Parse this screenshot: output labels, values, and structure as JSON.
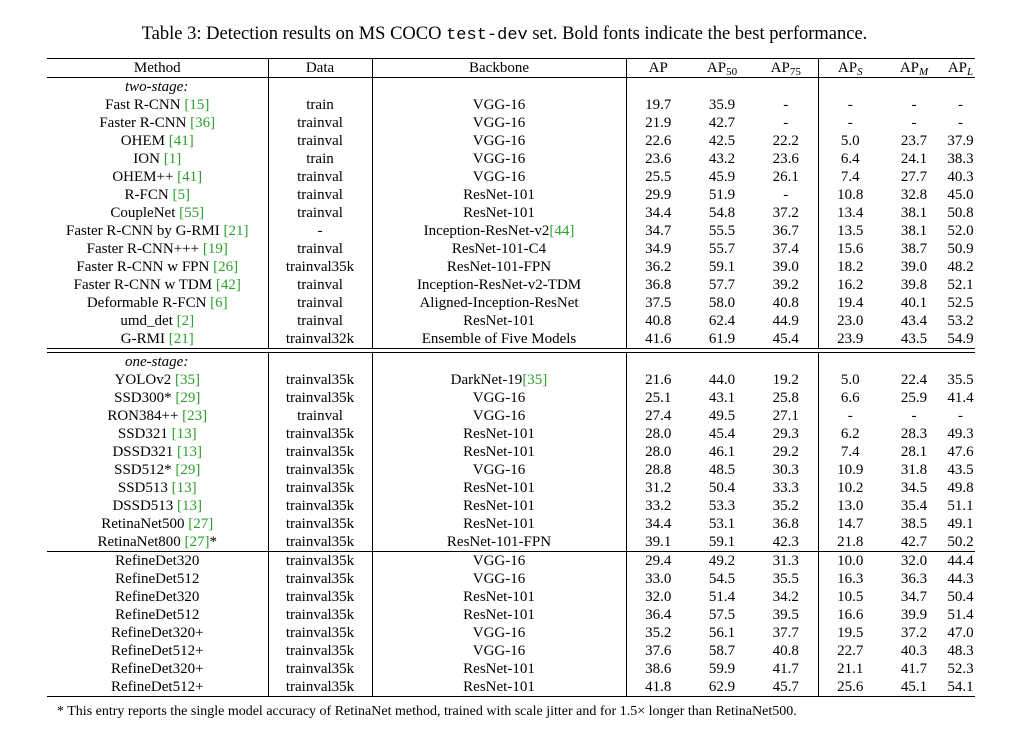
{
  "caption": {
    "before": "Table 3: Detection results on MS COCO ",
    "code": "test-dev",
    "after": " set. Bold fonts indicate the best performance."
  },
  "header": {
    "method": "Method",
    "data": "Data",
    "backbone": "Backbone",
    "ap": "AP",
    "ap50": {
      "base": "AP",
      "sub": "50"
    },
    "ap75": {
      "base": "AP",
      "sub": "75"
    },
    "aps": {
      "base": "AP",
      "sub": "S"
    },
    "apm": {
      "base": "AP",
      "sub": "M"
    },
    "apl": {
      "base": "AP",
      "sub": "L"
    }
  },
  "sections": {
    "two_stage": "two-stage:",
    "one_stage": "one-stage:"
  },
  "two_stage_rows": [
    {
      "name": "Fast R-CNN ",
      "ref": "[15]",
      "data": "train",
      "backbone": "VGG-16",
      "ap": "19.7",
      "ap50": "35.9",
      "ap75": "-",
      "aps": "-",
      "apm": "-",
      "apl": "-"
    },
    {
      "name": "Faster R-CNN ",
      "ref": "[36]",
      "data": "trainval",
      "backbone": "VGG-16",
      "ap": "21.9",
      "ap50": "42.7",
      "ap75": "-",
      "aps": "-",
      "apm": "-",
      "apl": "-"
    },
    {
      "name": "OHEM ",
      "ref": "[41]",
      "data": "trainval",
      "backbone": "VGG-16",
      "ap": "22.6",
      "ap50": "42.5",
      "ap75": "22.2",
      "aps": "5.0",
      "apm": "23.7",
      "apl": "37.9"
    },
    {
      "name": "ION ",
      "ref": "[1]",
      "data": "train",
      "backbone": "VGG-16",
      "ap": "23.6",
      "ap50": "43.2",
      "ap75": "23.6",
      "aps": "6.4",
      "apm": "24.1",
      "apl": "38.3"
    },
    {
      "name": "OHEM++ ",
      "ref": "[41]",
      "data": "trainval",
      "backbone": "VGG-16",
      "ap": "25.5",
      "ap50": "45.9",
      "ap75": "26.1",
      "aps": "7.4",
      "apm": "27.7",
      "apl": "40.3"
    },
    {
      "name": "R-FCN ",
      "ref": "[5]",
      "data": "trainval",
      "backbone": "ResNet-101",
      "ap": "29.9",
      "ap50": "51.9",
      "ap75": "-",
      "aps": "10.8",
      "apm": "32.8",
      "apl": "45.0"
    },
    {
      "name": "CoupleNet ",
      "ref": "[55]",
      "data": "trainval",
      "backbone": "ResNet-101",
      "ap": "34.4",
      "ap50": "54.8",
      "ap75": "37.2",
      "aps": "13.4",
      "apm": "38.1",
      "apl": "50.8"
    },
    {
      "name": "Faster R-CNN by G-RMI ",
      "ref": "[21]",
      "data": "-",
      "backbone": "Inception-ResNet-v2",
      "backbone_ref": "[44]",
      "ap": "34.7",
      "ap50": "55.5",
      "ap75": "36.7",
      "aps": "13.5",
      "apm": "38.1",
      "apl": "52.0"
    },
    {
      "name": "Faster R-CNN+++ ",
      "ref": "[19]",
      "data": "trainval",
      "backbone": "ResNet-101-C4",
      "ap": "34.9",
      "ap50": "55.7",
      "ap75": "37.4",
      "aps": "15.6",
      "apm": "38.7",
      "apl": "50.9"
    },
    {
      "name": "Faster R-CNN w FPN ",
      "ref": "[26]",
      "data": "trainval35k",
      "backbone": "ResNet-101-FPN",
      "ap": "36.2",
      "ap50": "59.1",
      "ap75": "39.0",
      "aps": "18.2",
      "apm": "39.0",
      "apl": "48.2"
    },
    {
      "name": "Faster R-CNN w TDM ",
      "ref": "[42]",
      "data": "trainval",
      "backbone": "Inception-ResNet-v2-TDM",
      "ap": "36.8",
      "ap50": "57.7",
      "ap75": "39.2",
      "aps": "16.2",
      "apm": "39.8",
      "apl": "52.1"
    },
    {
      "name": "Deformable R-FCN ",
      "ref": "[6]",
      "data": "trainval",
      "backbone": "Aligned-Inception-ResNet",
      "ap": "37.5",
      "ap50": "58.0",
      "ap75": "40.8",
      "aps": "19.4",
      "apm": "40.1",
      "apl": "52.5"
    },
    {
      "name": "umd_det ",
      "ref": "[2]",
      "data": "trainval",
      "backbone": "ResNet-101",
      "ap": "40.8",
      "ap50": "62.4",
      "ap75": "44.9",
      "aps": "23.0",
      "apm": "43.4",
      "apl": "53.2"
    },
    {
      "name": "G-RMI ",
      "ref": "[21]",
      "data": "trainval32k",
      "backbone": "Ensemble of Five Models",
      "ap": "41.6",
      "ap50": "61.9",
      "ap75": "45.4",
      "aps": "23.9",
      "apm": "43.5",
      "apl": "54.9"
    }
  ],
  "one_stage_rows": [
    {
      "name": "YOLOv2 ",
      "ref": "[35]",
      "data": "trainval35k",
      "backbone": "DarkNet-19",
      "backbone_ref": "[35]",
      "ap": "21.6",
      "ap50": "44.0",
      "ap75": "19.2",
      "aps": "5.0",
      "apm": "22.4",
      "apl": "35.5"
    },
    {
      "name": "SSD300* ",
      "ref": "[29]",
      "data": "trainval35k",
      "backbone": "VGG-16",
      "ap": "25.1",
      "ap50": "43.1",
      "ap75": "25.8",
      "aps": "6.6",
      "apm": "25.9",
      "apl": "41.4"
    },
    {
      "name": "RON384++ ",
      "ref": "[23]",
      "data": "trainval",
      "backbone": "VGG-16",
      "ap": "27.4",
      "ap50": "49.5",
      "ap75": "27.1",
      "aps": "-",
      "apm": "-",
      "apl": "-"
    },
    {
      "name": "SSD321 ",
      "ref": "[13]",
      "data": "trainval35k",
      "backbone": "ResNet-101",
      "ap": "28.0",
      "ap50": "45.4",
      "ap75": "29.3",
      "aps": "6.2",
      "apm": "28.3",
      "apl": "49.3"
    },
    {
      "name": "DSSD321 ",
      "ref": "[13]",
      "data": "trainval35k",
      "backbone": "ResNet-101",
      "ap": "28.0",
      "ap50": "46.1",
      "ap75": "29.2",
      "aps": "7.4",
      "apm": "28.1",
      "apl": "47.6"
    },
    {
      "name": "SSD512* ",
      "ref": "[29]",
      "data": "trainval35k",
      "backbone": "VGG-16",
      "ap": "28.8",
      "ap50": "48.5",
      "ap75": "30.3",
      "aps": "10.9",
      "apm": "31.8",
      "apl": "43.5"
    },
    {
      "name": "SSD513 ",
      "ref": "[13]",
      "data": "trainval35k",
      "backbone": "ResNet-101",
      "ap": "31.2",
      "ap50": "50.4",
      "ap75": "33.3",
      "aps": "10.2",
      "apm": "34.5",
      "apl": "49.8"
    },
    {
      "name": "DSSD513 ",
      "ref": "[13]",
      "data": "trainval35k",
      "backbone": "ResNet-101",
      "ap": "33.2",
      "ap50": "53.3",
      "ap75": "35.2",
      "aps": "13.0",
      "apm": "35.4",
      "apl": "51.1"
    },
    {
      "name": "RetinaNet500 ",
      "ref": "[27]",
      "data": "trainval35k",
      "backbone": "ResNet-101",
      "ap": "34.4",
      "ap50": "53.1",
      "ap75": "36.8",
      "aps": "14.7",
      "apm": "38.5",
      "apl": "49.1"
    },
    {
      "name": "RetinaNet800 ",
      "ref": "[27]",
      "suffix": "*",
      "data": "trainval35k",
      "backbone": "ResNet-101-FPN",
      "ap": "39.1",
      "ap50": "59.1",
      "ap75": "42.3",
      "aps": "21.8",
      "apm": "42.7",
      "apl": "50.2"
    }
  ],
  "refinedet_rows": [
    {
      "name": "RefineDet320",
      "data": "trainval35k",
      "backbone": "VGG-16",
      "ap": "29.4",
      "ap50": "49.2",
      "ap75": "31.3",
      "aps": "10.0",
      "apm": "32.0",
      "apl": "44.4"
    },
    {
      "name": "RefineDet512",
      "data": "trainval35k",
      "backbone": "VGG-16",
      "ap": "33.0",
      "ap50": "54.5",
      "ap75": "35.5",
      "aps": "16.3",
      "apm": "36.3",
      "apl": "44.3"
    },
    {
      "name": "RefineDet320",
      "data": "trainval35k",
      "backbone": "ResNet-101",
      "ap": "32.0",
      "ap50": "51.4",
      "ap75": "34.2",
      "aps": "10.5",
      "apm": "34.7",
      "apl": "50.4"
    },
    {
      "name": "RefineDet512",
      "data": "trainval35k",
      "backbone": "ResNet-101",
      "ap": "36.4",
      "ap50": "57.5",
      "ap75": "39.5",
      "aps": "16.6",
      "apm": "39.9",
      "apl": "51.4"
    },
    {
      "name": "RefineDet320+",
      "data": "trainval35k",
      "backbone": "VGG-16",
      "ap": "35.2",
      "ap50": "56.1",
      "ap75": "37.7",
      "aps": "19.5",
      "apm": "37.2",
      "apl": "47.0"
    },
    {
      "name": "RefineDet512+",
      "data": "trainval35k",
      "backbone": "VGG-16",
      "ap": "37.6",
      "ap50": "58.7",
      "ap75": "40.8",
      "aps": "22.7",
      "apm": "40.3",
      "apl": "48.3"
    },
    {
      "name": "RefineDet320+",
      "data": "trainval35k",
      "backbone": "ResNet-101",
      "ap": "38.6",
      "ap50": "59.9",
      "ap75": "41.7",
      "aps": "21.1",
      "apm": "41.7",
      "apl": "52.3"
    },
    {
      "name": "RefineDet512+",
      "data": "trainval35k",
      "backbone": "ResNet-101",
      "ap": "41.8",
      "ap50": "62.9",
      "ap75": "45.7",
      "aps": "25.6",
      "apm": "45.1",
      "apl": "54.1",
      "bold": true
    }
  ],
  "footnote": {
    "before": "* This entry reports the single model accuracy of RetinaNet method, trained with scale jitter and for ",
    "factor": "1.5×",
    "after": " longer than RetinaNet500."
  },
  "colors": {
    "reference": "#2ca02c"
  }
}
